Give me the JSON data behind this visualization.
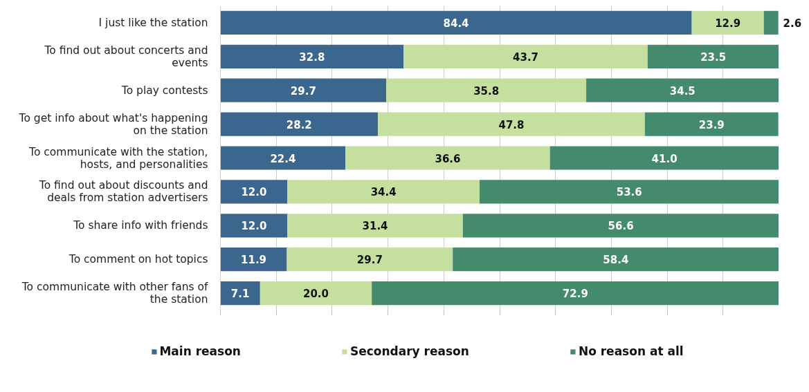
{
  "chart_data": {
    "type": "bar",
    "orientation": "horizontal",
    "stacked": true,
    "categories": [
      "I just like the station",
      "To find out about concerts and events",
      "To play contests",
      "To get info about what's happening on the station",
      "To communicate with the station, hosts, and personalities",
      "To find out about discounts and deals from station advertisers",
      "To share info with friends",
      "To comment on hot topics",
      "To communicate with other fans of the station"
    ],
    "series": [
      {
        "name": "Main reason",
        "color": "#3b678f",
        "values": [
          84.4,
          32.8,
          29.7,
          28.2,
          22.4,
          12.0,
          12.0,
          11.9,
          7.1
        ],
        "value_labels": [
          "84.4",
          "32.8",
          "29.7",
          "28.2",
          "22.4",
          "12.0",
          "12.0",
          "11.9",
          "7.1"
        ]
      },
      {
        "name": "Secondary reason",
        "color": "#c5e09e",
        "values": [
          12.9,
          43.7,
          35.8,
          47.8,
          36.6,
          34.4,
          31.4,
          29.7,
          20.0
        ],
        "value_labels": [
          "12.9",
          "43.7",
          "35.8",
          "47.8",
          "36.6",
          "34.4",
          "31.4",
          "29.7",
          "20.0"
        ]
      },
      {
        "name": "No reason at all",
        "color": "#448a6d",
        "values": [
          2.6,
          23.5,
          34.5,
          23.9,
          41.0,
          53.6,
          56.6,
          58.4,
          72.9
        ],
        "value_labels": [
          "2.6",
          "23.5",
          "34.5",
          "23.9",
          "41.0",
          "53.6",
          "56.6",
          "58.4",
          "72.9"
        ]
      }
    ],
    "xlim": [
      0,
      100
    ],
    "xticks": [
      {
        "value": 0,
        "label": null
      },
      {
        "value": 10,
        "label": null
      },
      {
        "value": 20,
        "label": null
      },
      {
        "value": 30,
        "label": null
      },
      {
        "value": 40,
        "label": null
      },
      {
        "value": 50,
        "label": null
      },
      {
        "value": 60,
        "label": null
      },
      {
        "value": 70,
        "label": null
      },
      {
        "value": 80,
        "label": null
      },
      {
        "value": 90,
        "label": null
      },
      {
        "value": 100,
        "label": null
      }
    ],
    "grid": "x",
    "legend": "bottom",
    "tick_labels": "y"
  }
}
